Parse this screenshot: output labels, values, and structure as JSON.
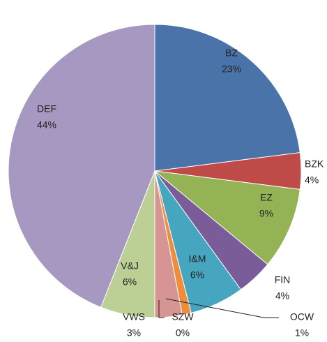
{
  "chart_data": {
    "type": "pie",
    "categories": [
      "BZ",
      "BZK",
      "EZ",
      "FIN",
      "I&M",
      "OCW",
      "SZW",
      "VWS",
      "V&J",
      "DEF"
    ],
    "values": [
      23,
      4,
      9,
      4,
      6,
      1,
      0,
      3,
      6,
      44
    ],
    "value_labels": [
      "23%",
      "4%",
      "9%",
      "4%",
      "6%",
      "1%",
      "0%",
      "3%",
      "6%",
      "44%"
    ],
    "colors": [
      "#4a73a9",
      "#be4b48",
      "#94b355",
      "#7a5c98",
      "#46a5bf",
      "#ef8c3e",
      "#b9cbe4",
      "#d69593",
      "#bcd096",
      "#a698c0"
    ]
  }
}
